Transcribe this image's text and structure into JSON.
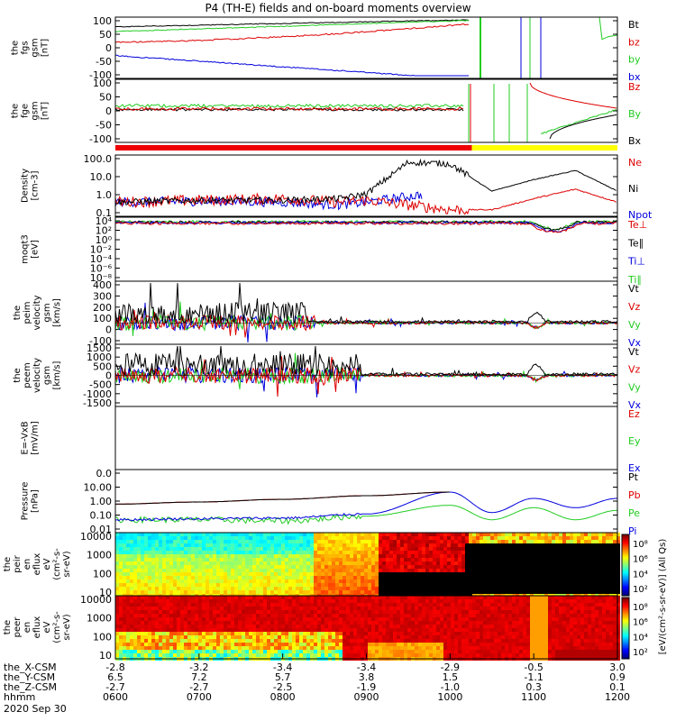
{
  "title": "P4 (TH-E) fields and on-board moments overview",
  "date_label": "2020 Sep 30",
  "time_ticks": [
    "0600",
    "0700",
    "0800",
    "0900",
    "1000",
    "1100",
    "1200"
  ],
  "ephemeris": {
    "labels": [
      "the_X-CSM",
      "the_Y-CSM",
      "the_Z-CSM",
      "hhmm"
    ],
    "X": [
      "-2.8",
      "-3.2",
      "-3.4",
      "-3.4",
      "-2.9",
      "-0.5",
      "3.0"
    ],
    "Y": [
      "6.5",
      "7.2",
      "5.7",
      "3.8",
      "1.5",
      "-1.1",
      "0.9"
    ],
    "Z": [
      "-2.7",
      "-2.7",
      "-2.5",
      "-1.9",
      "-1.0",
      "0.3",
      "0.1"
    ]
  },
  "panels": [
    {
      "id": "fgs-gsm",
      "ylabel": [
        "the",
        "fgs",
        "gsm",
        "[nT]"
      ],
      "ticks": [
        "100",
        "50",
        "0",
        "-50",
        "-100"
      ],
      "legend": [
        {
          "t": "Bt",
          "c": "#000000"
        },
        {
          "t": "bz",
          "c": "#dd0000"
        },
        {
          "t": "by",
          "c": "#22cc22"
        },
        {
          "t": "bx",
          "c": "#0000dd"
        }
      ]
    },
    {
      "id": "fge-gsm",
      "ylabel": [
        "the",
        "fge",
        "gsm",
        "[nT]"
      ],
      "ticks": [
        "100",
        "50",
        "0",
        "-50",
        "-100"
      ],
      "legend": [
        {
          "t": "Bz",
          "c": "#dd0000"
        },
        {
          "t": "By",
          "c": "#22cc22"
        },
        {
          "t": "Bx",
          "c": "#000000"
        }
      ]
    },
    {
      "id": "density",
      "ylabel": [
        "Density",
        "[cm-3]"
      ],
      "ticks": [
        "100.0",
        "10.0",
        "1.0",
        "0.1"
      ],
      "legend": [
        {
          "t": "Ne",
          "c": "#dd0000"
        },
        {
          "t": "Ni",
          "c": "#000000"
        },
        {
          "t": "Npot",
          "c": "#0000dd"
        }
      ]
    },
    {
      "id": "temperature",
      "ylabel": [
        "moqt3",
        "[eV]"
      ],
      "ticks": [
        "10⁴",
        "10²",
        "10⁰",
        "10⁻²",
        "10⁻⁴",
        "10⁻⁶",
        "10⁻⁸"
      ],
      "legend": [
        {
          "t": "Te⊥",
          "c": "#dd0000"
        },
        {
          "t": "Te∥",
          "c": "#000000"
        },
        {
          "t": "Ti⊥",
          "c": "#0000dd"
        },
        {
          "t": "Ti∥",
          "c": "#22cc22"
        }
      ]
    },
    {
      "id": "peim-velocity",
      "ylabel": [
        "the",
        "peim",
        "velocity",
        "gsm",
        "[km/s]"
      ],
      "ticks": [
        "400",
        "300",
        "200",
        "100",
        "0",
        "-100"
      ],
      "legend": [
        {
          "t": "Vt",
          "c": "#000000"
        },
        {
          "t": "Vz",
          "c": "#dd0000"
        },
        {
          "t": "Vy",
          "c": "#22cc22"
        },
        {
          "t": "Vx",
          "c": "#0000dd"
        }
      ]
    },
    {
      "id": "peem-velocity",
      "ylabel": [
        "the",
        "peem",
        "velocity",
        "gsm",
        "[km/s]"
      ],
      "ticks": [
        "1500",
        "1000",
        "500",
        "0",
        "-500",
        "-1000",
        "-1500"
      ],
      "legend": [
        {
          "t": "Vt",
          "c": "#000000"
        },
        {
          "t": "Vz",
          "c": "#dd0000"
        },
        {
          "t": "Vy",
          "c": "#22cc22"
        },
        {
          "t": "Vx",
          "c": "#0000dd"
        }
      ]
    },
    {
      "id": "efield",
      "ylabel": [
        "E=-VxB",
        "[mV/m]"
      ],
      "ticks": [],
      "legend": [
        {
          "t": "Ez",
          "c": "#dd0000"
        },
        {
          "t": "Ey",
          "c": "#22cc22"
        },
        {
          "t": "Ex",
          "c": "#0000dd"
        }
      ]
    },
    {
      "id": "pressure",
      "ylabel": [
        "Pressure",
        "[nPa]"
      ],
      "ticks": [
        "0.0",
        "10.00",
        "1.00",
        "0.10",
        "0.01"
      ],
      "legend": [
        {
          "t": "Pt",
          "c": "#000000"
        },
        {
          "t": "Pb",
          "c": "#dd0000"
        },
        {
          "t": "Pe",
          "c": "#22cc22"
        },
        {
          "t": "Pi",
          "c": "#0000dd"
        }
      ]
    },
    {
      "id": "ion-spec",
      "ylabel": [
        "the",
        "peir",
        "en",
        "eflux",
        "eV",
        "(cm²-s-",
        "sr-eV)"
      ],
      "ticks": [
        "10000",
        "1000",
        "100",
        "10"
      ],
      "legend": []
    },
    {
      "id": "electron-spec",
      "ylabel": [
        "the",
        "peer",
        "en",
        "eflux",
        "eV",
        "(cm²-s-",
        "sr-eV)"
      ],
      "ticks": [
        "10000",
        "1000",
        "100",
        "10"
      ],
      "legend": []
    }
  ],
  "colorbar": {
    "label": "[eV/(cm²-s-sr-eV)] (All Qs)",
    "ion_ticks": [
      "10⁸",
      "10⁶",
      "10⁴",
      "10²"
    ],
    "electron_ticks": [
      "10⁸",
      "10⁶",
      "10⁴",
      "10²"
    ]
  },
  "mode_bar": {
    "red_fraction": 0.71,
    "colors": [
      "#ee0000",
      "#ffff00"
    ]
  },
  "chart_data": {
    "type": "line",
    "title": "P4 (TH-E) fields and on-board moments overview",
    "x_range": [
      "0600",
      "1200"
    ],
    "series": [
      {
        "panel": "fgs-gsm",
        "name": "Bt",
        "x": [
          "0600",
          "0630",
          "0700",
          "0730",
          "0800",
          "0830",
          "0900",
          "0930",
          "1000",
          "1010"
        ],
        "values": [
          75,
          80,
          85,
          90,
          92,
          95,
          97,
          98,
          99,
          100
        ]
      },
      {
        "panel": "fgs-gsm",
        "name": "bz",
        "x": [
          "0600",
          "0630",
          "0700",
          "0730",
          "0800",
          "0830",
          "0900",
          "0930",
          "1000",
          "1010"
        ],
        "values": [
          20,
          22,
          25,
          30,
          35,
          45,
          55,
          65,
          80,
          90
        ]
      },
      {
        "panel": "fgs-gsm",
        "name": "by",
        "x": [
          "0600",
          "0630",
          "0700",
          "0730",
          "0800",
          "0830",
          "0900",
          "0930",
          "1000",
          "1010"
        ],
        "values": [
          60,
          63,
          66,
          70,
          75,
          80,
          90,
          95,
          100,
          100
        ]
      },
      {
        "panel": "fgs-gsm",
        "name": "bx",
        "x": [
          "0600",
          "0630",
          "0700",
          "0730",
          "0800",
          "0830",
          "0900",
          "0930",
          "1000"
        ],
        "values": [
          -30,
          -35,
          -45,
          -60,
          -75,
          -90,
          -100,
          -100,
          -100
        ]
      },
      {
        "panel": "density",
        "name": "Ni",
        "x": [
          "0600",
          "0700",
          "0800",
          "0840",
          "0900",
          "0930",
          "1000",
          "1030",
          "1100",
          "1130",
          "1200"
        ],
        "values": [
          0.3,
          0.4,
          0.4,
          0.5,
          1.0,
          100,
          80,
          1.5,
          8,
          30,
          1.5
        ]
      },
      {
        "panel": "density",
        "name": "Ne",
        "x": [
          "0600",
          "0700",
          "0800",
          "0840",
          "0900",
          "1000",
          "1030",
          "1100",
          "1130",
          "1200"
        ],
        "values": [
          0.3,
          0.4,
          0.5,
          0.3,
          0.4,
          0.1,
          0.1,
          0.5,
          2.0,
          0.3
        ]
      },
      {
        "panel": "density",
        "name": "Npot",
        "x": [
          "0600",
          "0700",
          "0800",
          "0840",
          "0900",
          "0940"
        ],
        "values": [
          0.3,
          0.35,
          0.3,
          0.2,
          0.3,
          0.9
        ]
      },
      {
        "panel": "pressure",
        "name": "Pt",
        "x": [
          "0600",
          "0700",
          "0800",
          "0900",
          "1000"
        ],
        "values": [
          1.0,
          1.5,
          2.5,
          5.0,
          10.0
        ]
      },
      {
        "panel": "pressure",
        "name": "Pi",
        "x": [
          "0600",
          "0700",
          "0800",
          "0900",
          "1000",
          "1030",
          "1100",
          "1130",
          "1200"
        ],
        "values": [
          0.05,
          0.06,
          0.07,
          0.15,
          10.0,
          0.2,
          3.0,
          0.5,
          3.0
        ]
      },
      {
        "panel": "pressure",
        "name": "Pe",
        "x": [
          "0600",
          "0700",
          "0800",
          "0900",
          "1000",
          "1030",
          "1100",
          "1130",
          "1200"
        ],
        "values": [
          0.05,
          0.05,
          0.04,
          0.1,
          0.8,
          0.05,
          0.5,
          0.05,
          0.3
        ]
      }
    ]
  }
}
